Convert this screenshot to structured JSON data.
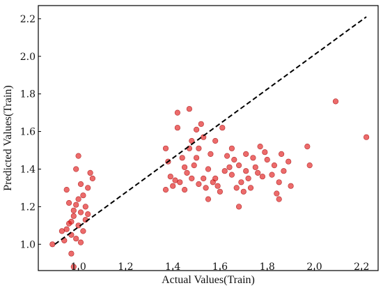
{
  "chart_data": {
    "type": "scatter",
    "title": "",
    "xlabel": "Actual Values(Train)",
    "ylabel": "Predicted Values(Train)",
    "xlim": [
      0.83,
      2.27
    ],
    "ylim": [
      0.86,
      2.27
    ],
    "xticks": [
      "1.0",
      "1.2",
      "1.4",
      "1.6",
      "1.8",
      "2.0",
      "2.2"
    ],
    "xtick_values": [
      1.0,
      1.2,
      1.4,
      1.6,
      1.8,
      2.0,
      2.2
    ],
    "yticks": [
      "1.0",
      "1.2",
      "1.4",
      "1.6",
      "1.8",
      "2.0",
      "2.2"
    ],
    "ytick_values": [
      1.0,
      1.2,
      1.4,
      1.6,
      1.8,
      2.0,
      2.2
    ],
    "grid": false,
    "legend": "none",
    "point_color": "#e01010",
    "reference_line": {
      "style": "dashed",
      "color": "#000000",
      "x": [
        0.9,
        2.22
      ],
      "y": [
        1.0,
        2.21
      ]
    },
    "series": [
      {
        "points": [
          [
            0.89,
            1.0
          ],
          [
            0.94,
            1.02
          ],
          [
            0.95,
            1.08
          ],
          [
            0.96,
            1.11
          ],
          [
            0.97,
            1.05
          ],
          [
            0.98,
            1.18
          ],
          [
            0.99,
            1.21
          ],
          [
            1.0,
            1.1
          ],
          [
            1.01,
            1.17
          ],
          [
            1.02,
            1.26
          ],
          [
            1.0,
            1.47
          ],
          [
            1.04,
            1.3
          ],
          [
            1.05,
            1.38
          ],
          [
            1.06,
            1.35
          ],
          [
            1.03,
            1.13
          ],
          [
            0.98,
            0.88
          ],
          [
            0.97,
            0.95
          ],
          [
            0.96,
            1.22
          ],
          [
            1.01,
            1.32
          ],
          [
            0.99,
            1.4
          ],
          [
            1.04,
            1.16
          ],
          [
            0.93,
            1.07
          ],
          [
            1.03,
            1.2
          ],
          [
            0.95,
            1.29
          ],
          [
            0.99,
            1.03
          ],
          [
            1.02,
            1.07
          ],
          [
            0.98,
            1.15
          ],
          [
            1.0,
            1.24
          ],
          [
            1.01,
            1.01
          ],
          [
            0.97,
            1.12
          ],
          [
            1.37,
            1.51
          ],
          [
            1.38,
            1.44
          ],
          [
            1.39,
            1.36
          ],
          [
            1.37,
            1.29
          ],
          [
            1.4,
            1.31
          ],
          [
            1.41,
            1.34
          ],
          [
            1.42,
            1.62
          ],
          [
            1.42,
            1.7
          ],
          [
            1.43,
            1.33
          ],
          [
            1.44,
            1.46
          ],
          [
            1.45,
            1.41
          ],
          [
            1.45,
            1.29
          ],
          [
            1.46,
            1.38
          ],
          [
            1.47,
            1.51
          ],
          [
            1.47,
            1.72
          ],
          [
            1.48,
            1.55
          ],
          [
            1.48,
            1.35
          ],
          [
            1.49,
            1.42
          ],
          [
            1.5,
            1.61
          ],
          [
            1.5,
            1.46
          ],
          [
            1.51,
            1.32
          ],
          [
            1.51,
            1.51
          ],
          [
            1.52,
            1.64
          ],
          [
            1.53,
            1.57
          ],
          [
            1.53,
            1.35
          ],
          [
            1.54,
            1.3
          ],
          [
            1.55,
            1.4
          ],
          [
            1.55,
            1.24
          ],
          [
            1.56,
            1.48
          ],
          [
            1.57,
            1.33
          ],
          [
            1.58,
            1.35
          ],
          [
            1.58,
            1.55
          ],
          [
            1.59,
            1.31
          ],
          [
            1.6,
            1.28
          ],
          [
            1.61,
            1.62
          ],
          [
            1.62,
            1.39
          ],
          [
            1.63,
            1.47
          ],
          [
            1.64,
            1.41
          ],
          [
            1.65,
            1.37
          ],
          [
            1.65,
            1.51
          ],
          [
            1.66,
            1.45
          ],
          [
            1.67,
            1.3
          ],
          [
            1.68,
            1.2
          ],
          [
            1.68,
            1.42
          ],
          [
            1.69,
            1.33
          ],
          [
            1.7,
            1.28
          ],
          [
            1.71,
            1.48
          ],
          [
            1.71,
            1.39
          ],
          [
            1.72,
            1.35
          ],
          [
            1.73,
            1.3
          ],
          [
            1.74,
            1.46
          ],
          [
            1.75,
            1.41
          ],
          [
            1.76,
            1.38
          ],
          [
            1.77,
            1.52
          ],
          [
            1.78,
            1.36
          ],
          [
            1.79,
            1.49
          ],
          [
            1.8,
            1.45
          ],
          [
            1.82,
            1.37
          ],
          [
            1.83,
            1.42
          ],
          [
            1.84,
            1.27
          ],
          [
            1.85,
            1.33
          ],
          [
            1.85,
            1.24
          ],
          [
            1.86,
            1.48
          ],
          [
            1.87,
            1.39
          ],
          [
            1.89,
            1.44
          ],
          [
            1.9,
            1.31
          ],
          [
            1.97,
            1.52
          ],
          [
            1.98,
            1.42
          ],
          [
            2.09,
            1.76
          ],
          [
            2.22,
            1.57
          ]
        ]
      }
    ]
  }
}
